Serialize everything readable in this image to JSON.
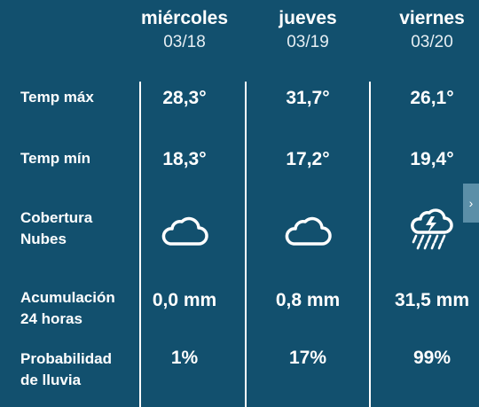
{
  "days": [
    {
      "name": "miércoles",
      "date": "03/18",
      "temp_max": "28,3°",
      "temp_min": "18,3°",
      "clouds_icon": "cloud-icon",
      "accumulation": "0,0 mm",
      "rain_probability": "1%"
    },
    {
      "name": "jueves",
      "date": "03/19",
      "temp_max": "31,7°",
      "temp_min": "17,2°",
      "clouds_icon": "cloud-icon",
      "accumulation": "0,8 mm",
      "rain_probability": "17%"
    },
    {
      "name": "viernes",
      "date": "03/20",
      "temp_max": "26,1°",
      "temp_min": "19,4°",
      "clouds_icon": "storm-rain-icon",
      "accumulation": "31,5 mm",
      "rain_probability": "99%"
    }
  ],
  "labels": {
    "temp_max": "Temp máx",
    "temp_min": "Temp mín",
    "clouds_line1": "Cobertura",
    "clouds_line2": "Nubes",
    "accum_line1": "Acumulación",
    "accum_line2": "24 horas",
    "prob_line1": "Probabilidad",
    "prob_line2": "de lluvia"
  },
  "next_arrow": "›",
  "colors": {
    "background": "#12506e",
    "text": "#ffffff",
    "arrow_bg": "#5b8fa8"
  }
}
